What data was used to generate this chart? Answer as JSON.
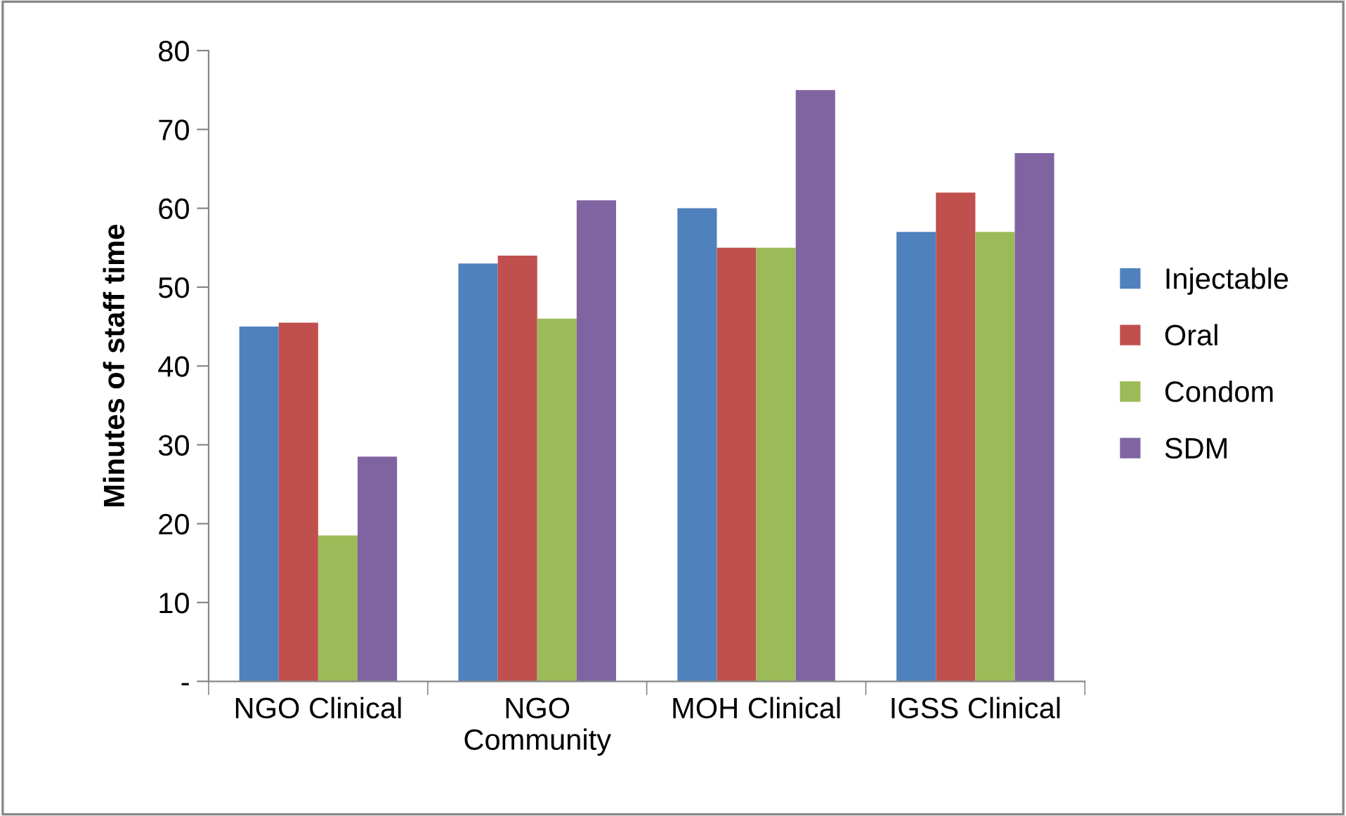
{
  "chart_data": {
    "type": "bar",
    "ylabel": "Minutes of staff time",
    "categories": [
      "NGO Clinical",
      "NGO\nCommunity",
      "MOH Clinical",
      "IGSS Clinical"
    ],
    "series": [
      {
        "name": "Injectable",
        "color": "#4f81bd",
        "values": [
          45,
          53,
          60,
          57
        ]
      },
      {
        "name": "Oral",
        "color": "#c0504d",
        "values": [
          45.5,
          54,
          55,
          62
        ]
      },
      {
        "name": "Condom",
        "color": "#9bbb59",
        "values": [
          18.5,
          46,
          55,
          57
        ]
      },
      {
        "name": "SDM",
        "color": "#8064a2",
        "values": [
          28.5,
          61,
          75,
          67
        ]
      }
    ],
    "ylim": [
      0,
      80
    ],
    "yticks": [
      {
        "value": 0,
        "label": "-"
      },
      10,
      20,
      30,
      40,
      50,
      60,
      70,
      80
    ],
    "grid": false,
    "legend": "right"
  }
}
